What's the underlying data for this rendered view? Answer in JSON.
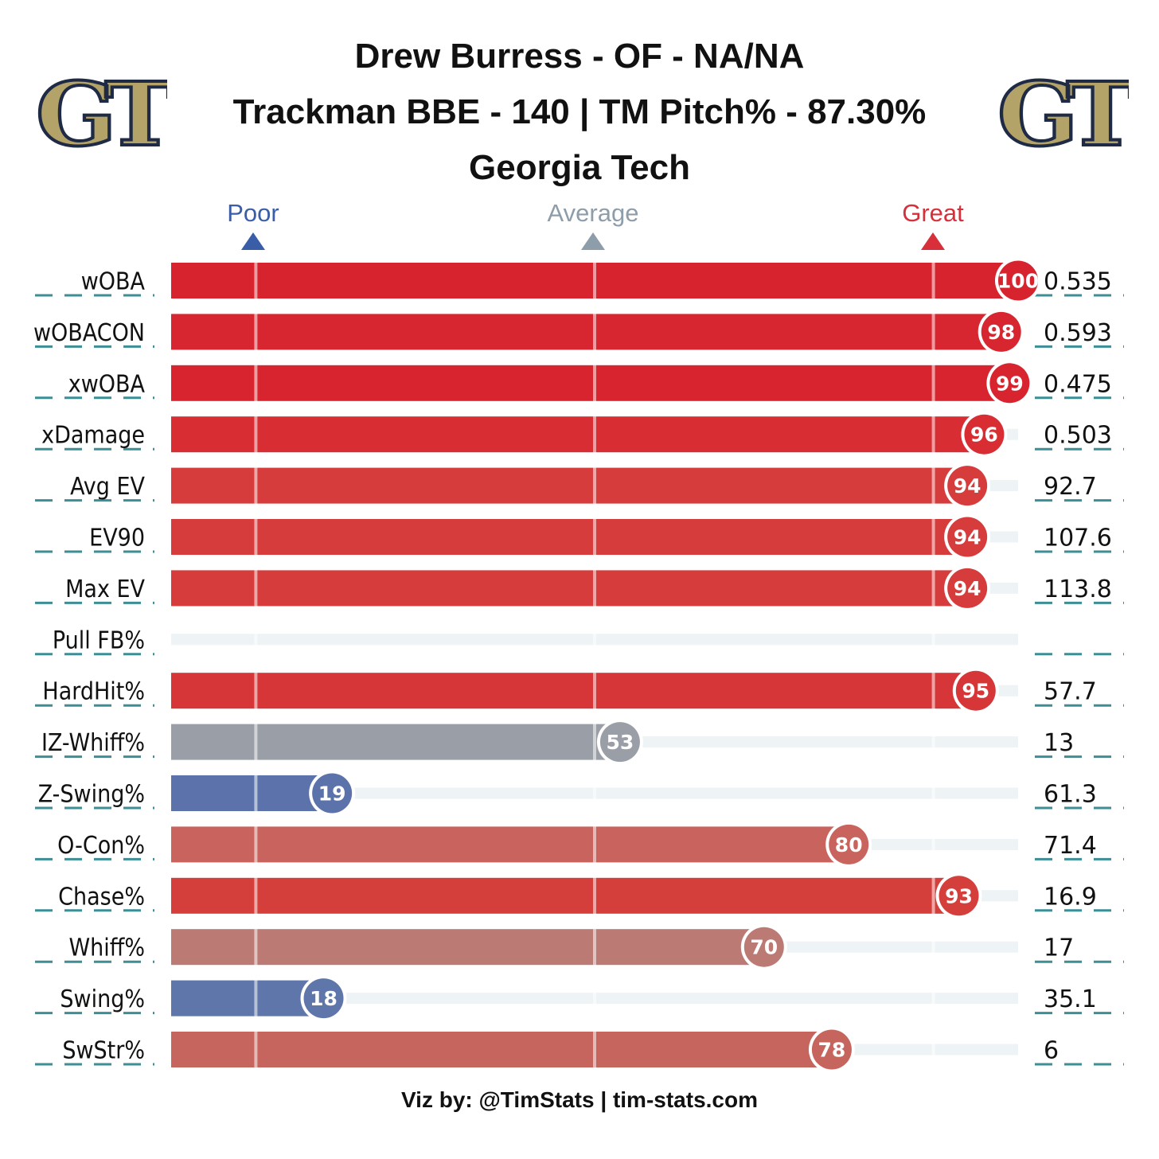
{
  "title": {
    "line1": "Drew Burress - OF - NA/NA",
    "line2": "Trackman BBE - 140 | TM Pitch% - 87.30%",
    "line3": "Georgia Tech"
  },
  "logo": {
    "text": "GT",
    "icon": "georgia-tech-logo",
    "fill": "#B3A369",
    "outline": "#1F2B45"
  },
  "scale": {
    "poor": {
      "label": "Poor",
      "color": "#3A5DA8"
    },
    "average": {
      "label": "Average",
      "color": "#8E9DAA"
    },
    "great": {
      "label": "Great",
      "color": "#D7303B"
    }
  },
  "footer": "Viz by: @TimStats | tim-stats.com",
  "chart_data": {
    "type": "bar",
    "orientation": "horizontal",
    "xlim": [
      0,
      100
    ],
    "reference_marks": [
      10,
      50,
      90
    ],
    "track_color": "#EEF3F5",
    "categories": [
      "wOBA",
      "wOBACON",
      "xwOBA",
      "xDamage",
      "Avg EV",
      "EV90",
      "Max EV",
      "Pull FB%",
      "HardHit%",
      "IZ-Whiff%",
      "Z-Swing%",
      "O-Con%",
      "Chase%",
      "Whiff%",
      "Swing%",
      "SwStr%"
    ],
    "percentiles": [
      100,
      98,
      99,
      96,
      94,
      94,
      94,
      null,
      95,
      53,
      19,
      80,
      93,
      70,
      18,
      78
    ],
    "values": [
      "0.535",
      "0.593",
      "0.475",
      "0.503",
      "92.7",
      "107.6",
      "113.8",
      "",
      "57.7",
      "13",
      "61.3",
      "71.4",
      "16.9",
      "17",
      "35.1",
      "6"
    ],
    "colors": [
      "#D7232D",
      "#D7262F",
      "#D7242E",
      "#D72D33",
      "#D53C3B",
      "#D53C3B",
      "#D53C3B",
      "",
      "#D63637",
      "#9A9EA7",
      "#5B73AA",
      "#C8645D",
      "#D53F3B",
      "#BC7A75",
      "#5E76A9",
      "#C6655E"
    ]
  }
}
